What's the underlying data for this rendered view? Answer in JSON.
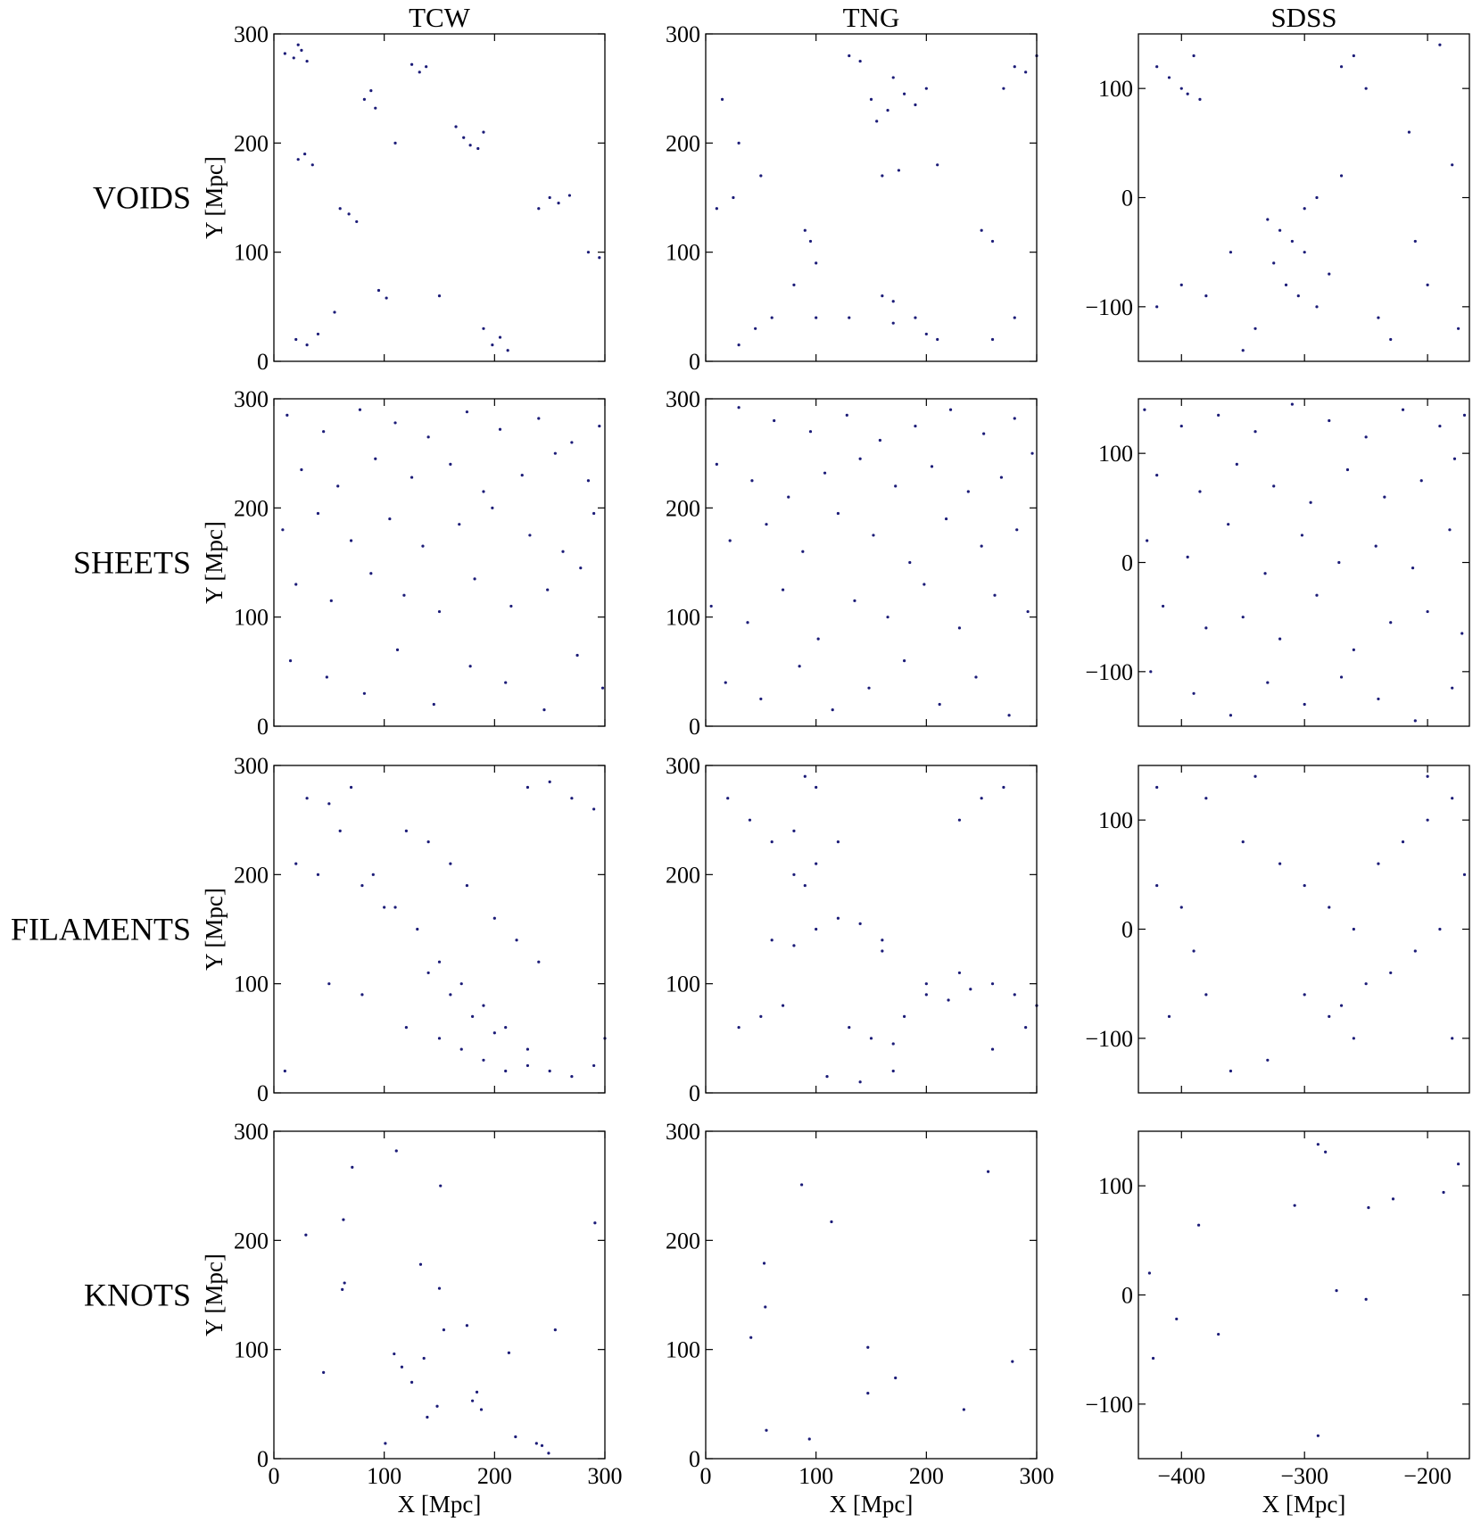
{
  "column_titles": [
    "TCW",
    "TNG",
    "SDSS"
  ],
  "row_labels": [
    "VOIDS",
    "SHEETS",
    "FILAMENTS",
    "KNOTS"
  ],
  "chart_data": [
    {
      "type": "scatter",
      "ylabel": "Y [Mpc]",
      "color": "#1c1c78",
      "xlim": [
        0,
        300
      ],
      "ylim": [
        0,
        300
      ],
      "xticks": [
        0,
        100,
        200,
        300
      ],
      "yticks": [
        0,
        100,
        200,
        300
      ],
      "x": [
        10,
        18,
        25,
        30,
        22,
        125,
        132,
        138,
        82,
        88,
        92,
        165,
        172,
        178,
        185,
        190,
        22,
        28,
        35,
        60,
        68,
        75,
        95,
        102,
        20,
        30,
        40,
        55,
        190,
        198,
        205,
        212,
        240,
        250,
        258,
        268,
        285,
        295,
        150,
        110
      ],
      "y": [
        282,
        278,
        285,
        275,
        290,
        272,
        265,
        270,
        240,
        248,
        232,
        215,
        205,
        198,
        195,
        210,
        185,
        190,
        180,
        140,
        135,
        128,
        65,
        58,
        20,
        15,
        25,
        45,
        30,
        15,
        22,
        10,
        140,
        150,
        145,
        152,
        100,
        95,
        60,
        200
      ]
    },
    {
      "type": "scatter",
      "color": "#1c1c78",
      "xlim": [
        0,
        300
      ],
      "ylim": [
        0,
        300
      ],
      "xticks": [
        0,
        100,
        200,
        300
      ],
      "yticks": [
        0,
        100,
        200,
        300
      ],
      "x": [
        15,
        30,
        10,
        25,
        50,
        130,
        140,
        155,
        165,
        150,
        170,
        180,
        190,
        200,
        210,
        160,
        175,
        280,
        290,
        300,
        270,
        90,
        95,
        100,
        80,
        250,
        260,
        170,
        190,
        45,
        60,
        30,
        100,
        130,
        160,
        170,
        200,
        210,
        260,
        280
      ],
      "y": [
        240,
        200,
        140,
        150,
        170,
        280,
        275,
        220,
        230,
        240,
        260,
        245,
        235,
        250,
        180,
        170,
        175,
        270,
        265,
        280,
        250,
        120,
        110,
        90,
        70,
        120,
        110,
        35,
        40,
        30,
        40,
        15,
        40,
        40,
        60,
        55,
        25,
        20,
        20,
        40
      ]
    },
    {
      "type": "scatter",
      "color": "#1c1c78",
      "xlim": [
        -435,
        -166
      ],
      "ylim": [
        -150,
        150
      ],
      "xticks": [
        {
          "value": -400,
          "label": "−400"
        },
        {
          "value": -300,
          "label": "−300"
        },
        {
          "value": -200,
          "label": "−200"
        }
      ],
      "yticks": [
        {
          "value": -100,
          "label": "−100"
        },
        0,
        100
      ],
      "x": [
        -420,
        -400,
        -395,
        -410,
        -385,
        -390,
        -330,
        -320,
        -310,
        -300,
        -325,
        -315,
        -305,
        -290,
        -280,
        -340,
        -350,
        -360,
        -260,
        -270,
        -250,
        -240,
        -230,
        -210,
        -200,
        -190,
        -180,
        -400,
        -420,
        -380,
        -300,
        -290,
        -270,
        -215,
        -175
      ],
      "y": [
        120,
        100,
        95,
        110,
        90,
        130,
        -20,
        -30,
        -40,
        -50,
        -60,
        -80,
        -90,
        -100,
        -70,
        -120,
        -140,
        -50,
        130,
        120,
        100,
        -110,
        -130,
        -40,
        -80,
        140,
        30,
        -80,
        -100,
        -90,
        -10,
        0,
        20,
        60,
        -120
      ]
    },
    {
      "type": "scatter",
      "ylabel": "Y [Mpc]",
      "color": "#1c1c78",
      "xlim": [
        0,
        300
      ],
      "ylim": [
        0,
        300
      ],
      "xticks": [
        0,
        100,
        200,
        300
      ],
      "yticks": [
        0,
        100,
        200,
        300
      ],
      "x": [
        12,
        45,
        78,
        110,
        140,
        175,
        205,
        240,
        270,
        295,
        25,
        58,
        92,
        125,
        160,
        190,
        225,
        255,
        285,
        8,
        40,
        70,
        105,
        135,
        168,
        198,
        232,
        262,
        290,
        20,
        52,
        88,
        118,
        150,
        182,
        215,
        248,
        278,
        15,
        48,
        82,
        112,
        145,
        178,
        210,
        245,
        275,
        298
      ],
      "y": [
        285,
        270,
        290,
        278,
        265,
        288,
        272,
        282,
        260,
        275,
        235,
        220,
        245,
        228,
        240,
        215,
        230,
        250,
        225,
        180,
        195,
        170,
        190,
        165,
        185,
        200,
        175,
        160,
        195,
        130,
        115,
        140,
        120,
        105,
        135,
        110,
        125,
        145,
        60,
        45,
        30,
        70,
        20,
        55,
        40,
        15,
        65,
        35
      ]
    },
    {
      "type": "scatter",
      "color": "#1c1c78",
      "xlim": [
        0,
        300
      ],
      "ylim": [
        0,
        300
      ],
      "xticks": [
        0,
        100,
        200,
        300
      ],
      "yticks": [
        0,
        100,
        200,
        300
      ],
      "x": [
        30,
        62,
        95,
        128,
        158,
        190,
        222,
        252,
        280,
        10,
        42,
        75,
        108,
        140,
        172,
        205,
        238,
        268,
        296,
        22,
        55,
        88,
        120,
        152,
        185,
        218,
        250,
        282,
        5,
        38,
        70,
        102,
        135,
        165,
        198,
        230,
        262,
        292,
        18,
        50,
        85,
        115,
        148,
        180,
        212,
        245,
        275
      ],
      "y": [
        292,
        280,
        270,
        285,
        262,
        275,
        290,
        268,
        282,
        240,
        225,
        210,
        232,
        245,
        220,
        238,
        215,
        228,
        250,
        170,
        185,
        160,
        195,
        175,
        150,
        190,
        165,
        180,
        110,
        95,
        125,
        80,
        115,
        100,
        130,
        90,
        120,
        105,
        40,
        25,
        55,
        15,
        35,
        60,
        20,
        45,
        10
      ]
    },
    {
      "type": "scatter",
      "color": "#1c1c78",
      "xlim": [
        -435,
        -166
      ],
      "ylim": [
        -150,
        150
      ],
      "xticks": [
        {
          "value": -400,
          "label": "−400"
        },
        {
          "value": -300,
          "label": "−300"
        },
        {
          "value": -200,
          "label": "−200"
        }
      ],
      "yticks": [
        {
          "value": -100,
          "label": "−100"
        },
        0,
        100
      ],
      "x": [
        -430,
        -400,
        -370,
        -340,
        -310,
        -280,
        -250,
        -220,
        -190,
        -170,
        -420,
        -385,
        -355,
        -325,
        -295,
        -265,
        -235,
        -205,
        -178,
        -428,
        -395,
        -362,
        -332,
        -302,
        -272,
        -242,
        -212,
        -182,
        -415,
        -380,
        -350,
        -320,
        -290,
        -260,
        -230,
        -200,
        -172,
        -425,
        -390,
        -360,
        -330,
        -300,
        -270,
        -240,
        -210,
        -180
      ],
      "y": [
        140,
        125,
        135,
        120,
        145,
        130,
        115,
        140,
        125,
        135,
        80,
        65,
        90,
        70,
        55,
        85,
        60,
        75,
        95,
        20,
        5,
        35,
        -10,
        25,
        0,
        15,
        -5,
        30,
        -40,
        -60,
        -50,
        -70,
        -30,
        -80,
        -55,
        -45,
        -65,
        -100,
        -120,
        -140,
        -110,
        -130,
        -105,
        -125,
        -145,
        -115
      ]
    },
    {
      "type": "scatter",
      "ylabel": "Y [Mpc]",
      "color": "#1c1c78",
      "xlim": [
        0,
        300
      ],
      "ylim": [
        0,
        300
      ],
      "xticks": [
        0,
        100,
        200,
        300
      ],
      "yticks": [
        0,
        100,
        200,
        300
      ],
      "x": [
        30,
        50,
        70,
        60,
        90,
        110,
        130,
        150,
        170,
        190,
        210,
        230,
        250,
        270,
        290,
        120,
        140,
        160,
        175,
        200,
        220,
        240,
        20,
        40,
        80,
        100,
        140,
        160,
        180,
        200,
        150,
        170,
        190,
        210,
        230,
        230,
        250,
        270,
        290,
        50,
        80,
        120,
        10,
        300
      ],
      "y": [
        270,
        265,
        280,
        240,
        200,
        170,
        150,
        120,
        100,
        80,
        60,
        40,
        20,
        15,
        25,
        240,
        230,
        210,
        190,
        160,
        140,
        120,
        210,
        200,
        190,
        170,
        110,
        90,
        70,
        55,
        50,
        40,
        30,
        20,
        25,
        280,
        285,
        270,
        260,
        100,
        90,
        60,
        20,
        50
      ]
    },
    {
      "type": "scatter",
      "color": "#1c1c78",
      "xlim": [
        0,
        300
      ],
      "ylim": [
        0,
        300
      ],
      "xticks": [
        0,
        100,
        200,
        300
      ],
      "yticks": [
        0,
        100,
        200,
        300
      ],
      "x": [
        20,
        40,
        60,
        80,
        90,
        100,
        120,
        60,
        80,
        100,
        120,
        140,
        160,
        200,
        220,
        240,
        260,
        280,
        300,
        130,
        150,
        170,
        180,
        30,
        50,
        70,
        110,
        140,
        170,
        200,
        230,
        260,
        290,
        80,
        90,
        100,
        230,
        250,
        270,
        160
      ],
      "y": [
        270,
        250,
        230,
        240,
        290,
        280,
        230,
        140,
        135,
        150,
        160,
        155,
        130,
        90,
        85,
        95,
        100,
        90,
        80,
        60,
        50,
        45,
        70,
        60,
        70,
        80,
        15,
        10,
        20,
        100,
        110,
        40,
        60,
        200,
        190,
        210,
        250,
        270,
        280,
        140
      ]
    },
    {
      "type": "scatter",
      "color": "#1c1c78",
      "xlim": [
        -435,
        -166
      ],
      "ylim": [
        -150,
        150
      ],
      "xticks": [
        {
          "value": -400,
          "label": "−400"
        },
        {
          "value": -300,
          "label": "−300"
        },
        {
          "value": -200,
          "label": "−200"
        }
      ],
      "yticks": [
        {
          "value": -100,
          "label": "−100"
        },
        0,
        100
      ],
      "x": [
        -420,
        -400,
        -390,
        -380,
        -410,
        -350,
        -320,
        -300,
        -280,
        -260,
        -240,
        -220,
        -200,
        -180,
        -170,
        -300,
        -280,
        -260,
        -330,
        -360,
        -230,
        -210,
        -190,
        -250,
        -270,
        -420,
        -380,
        -340,
        -200,
        -180
      ],
      "y": [
        40,
        20,
        -20,
        -60,
        -80,
        80,
        60,
        40,
        20,
        0,
        60,
        80,
        100,
        120,
        50,
        -60,
        -80,
        -100,
        -120,
        -130,
        -40,
        -20,
        0,
        -50,
        -70,
        130,
        120,
        140,
        140,
        -100
      ]
    },
    {
      "type": "scatter",
      "xlabel": "X [Mpc]",
      "ylabel": "Y [Mpc]",
      "color": "#1c1c78",
      "xlim": [
        0,
        300
      ],
      "ylim": [
        0,
        300
      ],
      "xticks": [
        0,
        100,
        200,
        300
      ],
      "yticks": [
        0,
        100,
        200,
        300
      ],
      "x": [
        71,
        111,
        151,
        29,
        63,
        64,
        62,
        133,
        150,
        154,
        175,
        255,
        291,
        45,
        109,
        136,
        213,
        116,
        125,
        184,
        180,
        148,
        139,
        188,
        219,
        238,
        243,
        249,
        101
      ],
      "y": [
        267,
        282,
        250,
        205,
        219,
        161,
        155,
        178,
        156,
        118,
        122,
        118,
        216,
        79,
        96,
        92,
        97,
        84,
        70,
        61,
        53,
        48,
        38,
        45,
        20,
        14,
        12,
        5,
        14
      ]
    },
    {
      "type": "scatter",
      "xlabel": "X [Mpc]",
      "color": "#1c1c78",
      "xlim": [
        0,
        300
      ],
      "ylim": [
        0,
        300
      ],
      "xticks": [
        0,
        100,
        200,
        300
      ],
      "yticks": [
        0,
        100,
        200,
        300
      ],
      "x": [
        87,
        114,
        53,
        256,
        54,
        41,
        147,
        172,
        278,
        147,
        234,
        55,
        94
      ],
      "y": [
        251,
        217,
        179,
        263,
        139,
        111,
        102,
        74,
        89,
        60,
        45,
        26,
        18
      ]
    },
    {
      "type": "scatter",
      "xlabel": "X [Mpc]",
      "color": "#1c1c78",
      "xlim": [
        -435,
        -166
      ],
      "ylim": [
        -150,
        150
      ],
      "xticks": [
        {
          "value": -400,
          "label": "−400"
        },
        {
          "value": -300,
          "label": "−300"
        },
        {
          "value": -200,
          "label": "−200"
        }
      ],
      "yticks": [
        {
          "value": -100,
          "label": "−100"
        },
        0,
        100
      ],
      "x": [
        -426,
        -423,
        -404,
        -386,
        -370,
        -308,
        -274,
        -289,
        -283,
        -248,
        -228,
        -250,
        -187,
        -175,
        -289
      ],
      "y": [
        20,
        -58,
        -22,
        64,
        -36,
        82,
        4,
        138,
        131,
        80,
        88,
        -4,
        94,
        120,
        -129
      ]
    }
  ]
}
